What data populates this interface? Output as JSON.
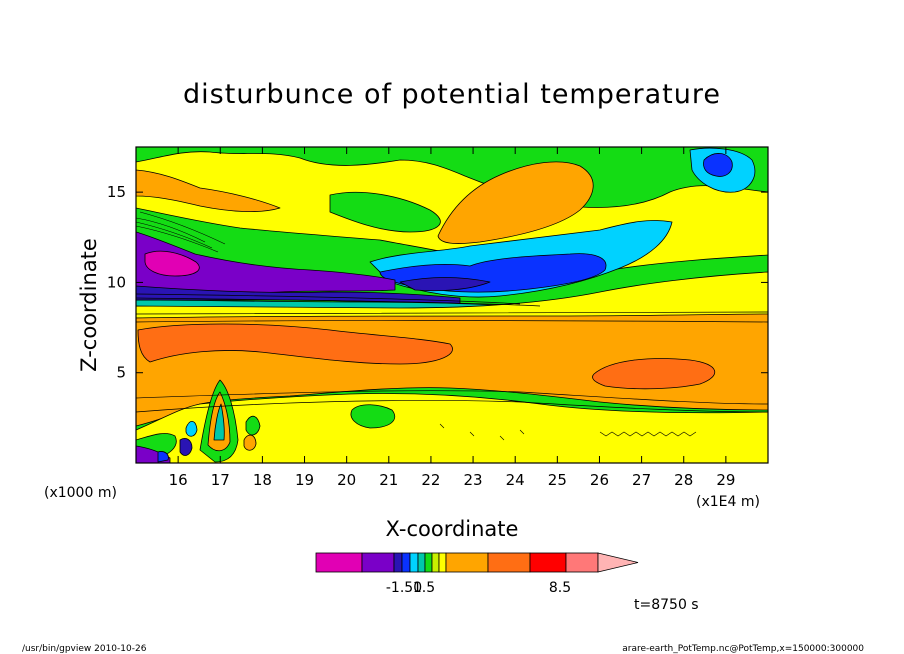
{
  "chart_data": {
    "type": "heatmap",
    "title": "disturbunce of potential temperature",
    "xlabel": "X-coordinate",
    "ylabel": "Z-coordinate",
    "x_unit": "(x1E4 m)",
    "y_unit": "(x1000 m)",
    "xlim": [
      15.0,
      30.0
    ],
    "ylim": [
      0.0,
      17.5
    ],
    "x_ticks": [
      16,
      17,
      18,
      19,
      20,
      21,
      22,
      23,
      24,
      25,
      26,
      27,
      28,
      29
    ],
    "y_ticks": [
      5,
      10,
      15
    ],
    "colorbar": {
      "labels": [
        {
          "value": -1.5,
          "text": "-1.50"
        },
        {
          "value": 1.5,
          "text": "1.5"
        },
        {
          "value": 8.5,
          "text": "8.5"
        }
      ],
      "colors": [
        "#e100b4",
        "#7a00c8",
        "#2a14b4",
        "#0a32ff",
        "#00d2ff",
        "#00c8aa",
        "#14dc14",
        "#c8f000",
        "#ffff00",
        "#ffa500",
        "#ff6e14",
        "#ff0000",
        "#ff7878",
        "#ffb4b4"
      ]
    },
    "time_label": "t=8750 s"
  },
  "footer": {
    "left": "/usr/bin/gpview   2010-10-26",
    "right": "arare-earth_PotTemp.nc@PotTemp,x=150000:300000"
  },
  "colors": {
    "magenta": "#e100b4",
    "purple": "#7a00c8",
    "navy": "#2a14b4",
    "blue": "#0a32ff",
    "cyan": "#00d2ff",
    "teal": "#00c8aa",
    "green": "#14dc14",
    "lime": "#c8f000",
    "yellow": "#ffff00",
    "orange": "#ffa500",
    "darkorange": "#ff6e14",
    "red": "#ff0000",
    "salmon": "#ff7878",
    "pink": "#ffb4b4"
  }
}
